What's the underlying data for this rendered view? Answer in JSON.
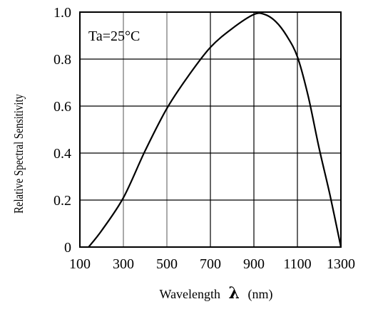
{
  "chart_data": {
    "type": "line",
    "title": "",
    "xlabel": "Wavelength",
    "xlabel_symbol": "λ",
    "xlabel_unit": "(nm)",
    "ylabel": "Relative Spectral Sensitivity",
    "annotation": "Ta=25°C",
    "xlim": [
      100,
      1300
    ],
    "ylim": [
      0,
      1.0
    ],
    "x_ticks": [
      100,
      300,
      500,
      700,
      900,
      1100,
      1300
    ],
    "y_ticks": [
      0,
      0.2,
      0.4,
      0.6,
      0.8,
      1.0
    ],
    "x_tick_labels": [
      "100",
      "300",
      "500",
      "700",
      "900",
      "1100",
      "1300"
    ],
    "y_tick_labels": [
      "0",
      "0.2",
      "0.4",
      "0.6",
      "0.8",
      "1.0"
    ],
    "grid": true,
    "series": [
      {
        "x": [
          140,
          200,
          300,
          400,
          500,
          600,
          700,
          800,
          900,
          950,
          1000,
          1050,
          1100,
          1150,
          1200,
          1250,
          1300
        ],
        "y": [
          0.0,
          0.07,
          0.21,
          0.41,
          0.59,
          0.73,
          0.85,
          0.93,
          0.99,
          0.99,
          0.96,
          0.9,
          0.81,
          0.64,
          0.42,
          0.22,
          0.0
        ]
      }
    ],
    "colors": {
      "line": "#000000",
      "grid": "#000000",
      "highlight_grid": "#aaaaaa"
    }
  }
}
